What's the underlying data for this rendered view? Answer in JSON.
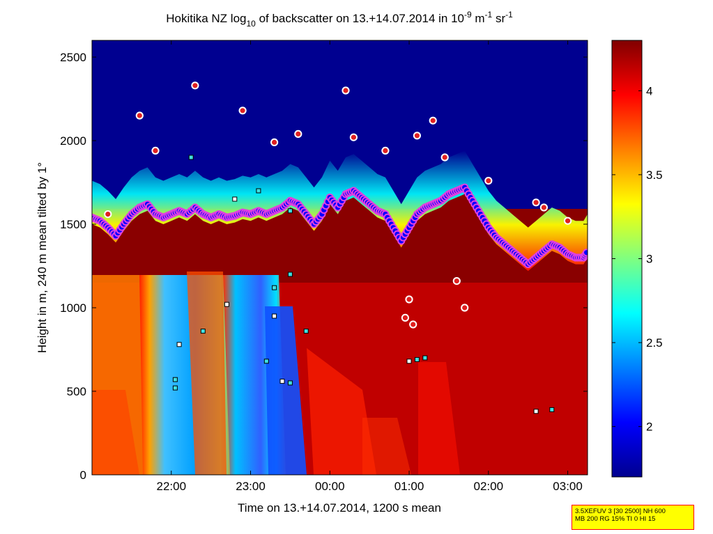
{
  "chart_data": {
    "type": "heatmap",
    "title": {
      "prefix": "Hokitika NZ log",
      "sub": "10",
      "middle": " of backscatter on 13.+14.07.2014 in 10",
      "sup1": "-9",
      "unit_m": " m",
      "sup2": "-1",
      "unit_sr": " sr",
      "sup3": "-1"
    },
    "xlabel": "Time on 13.+14.07.2014, 1200 s mean",
    "ylabel": "Height in m, 240 m mean tilted by 1°",
    "x_range_hours": [
      21.0,
      27.25
    ],
    "x_ticks": [
      {
        "value": 22,
        "label": "22:00"
      },
      {
        "value": 23,
        "label": "23:00"
      },
      {
        "value": 24,
        "label": "00:00"
      },
      {
        "value": 25,
        "label": "01:00"
      },
      {
        "value": 26,
        "label": "02:00"
      },
      {
        "value": 27,
        "label": "03:00"
      }
    ],
    "y_range": [
      0,
      2600
    ],
    "y_ticks": [
      0,
      500,
      1000,
      1500,
      2000,
      2500
    ],
    "colorbar": {
      "range": [
        1.7,
        4.3
      ],
      "ticks": [
        "2",
        "2.5",
        "3",
        "3.5",
        "4"
      ],
      "colormap": "jet"
    },
    "layer_top_height": [
      [
        21.0,
        1540
      ],
      [
        21.1,
        1520
      ],
      [
        21.2,
        1480
      ],
      [
        21.3,
        1430
      ],
      [
        21.4,
        1500
      ],
      [
        21.5,
        1560
      ],
      [
        21.6,
        1600
      ],
      [
        21.7,
        1620
      ],
      [
        21.8,
        1560
      ],
      [
        21.9,
        1540
      ],
      [
        22.0,
        1560
      ],
      [
        22.1,
        1580
      ],
      [
        22.2,
        1560
      ],
      [
        22.3,
        1600
      ],
      [
        22.4,
        1560
      ],
      [
        22.5,
        1540
      ],
      [
        22.6,
        1560
      ],
      [
        22.7,
        1540
      ],
      [
        22.8,
        1550
      ],
      [
        22.9,
        1570
      ],
      [
        23.0,
        1560
      ],
      [
        23.1,
        1580
      ],
      [
        23.2,
        1560
      ],
      [
        23.3,
        1580
      ],
      [
        23.4,
        1600
      ],
      [
        23.5,
        1640
      ],
      [
        23.6,
        1620
      ],
      [
        23.7,
        1560
      ],
      [
        23.8,
        1500
      ],
      [
        23.9,
        1560
      ],
      [
        24.0,
        1660
      ],
      [
        24.1,
        1600
      ],
      [
        24.2,
        1680
      ],
      [
        24.3,
        1700
      ],
      [
        24.4,
        1660
      ],
      [
        24.5,
        1620
      ],
      [
        24.6,
        1580
      ],
      [
        24.7,
        1560
      ],
      [
        24.8,
        1480
      ],
      [
        24.9,
        1400
      ],
      [
        25.0,
        1480
      ],
      [
        25.1,
        1560
      ],
      [
        25.2,
        1600
      ],
      [
        25.3,
        1620
      ],
      [
        25.4,
        1640
      ],
      [
        25.5,
        1680
      ],
      [
        25.6,
        1700
      ],
      [
        25.7,
        1720
      ],
      [
        25.8,
        1640
      ],
      [
        25.9,
        1560
      ],
      [
        26.0,
        1480
      ],
      [
        26.1,
        1420
      ],
      [
        26.2,
        1380
      ],
      [
        26.3,
        1340
      ],
      [
        26.4,
        1300
      ],
      [
        26.5,
        1260
      ],
      [
        26.6,
        1300
      ],
      [
        26.7,
        1340
      ],
      [
        26.8,
        1380
      ],
      [
        26.9,
        1360
      ],
      [
        27.0,
        1320
      ],
      [
        27.1,
        1300
      ],
      [
        27.2,
        1300
      ],
      [
        27.25,
        1340
      ]
    ],
    "cloud_base_points": [
      [
        22.1,
        780
      ],
      [
        22.05,
        570
      ],
      [
        22.05,
        520
      ],
      [
        22.7,
        1020
      ],
      [
        22.4,
        860
      ],
      [
        23.2,
        680
      ],
      [
        23.4,
        560
      ],
      [
        23.5,
        550
      ],
      [
        23.7,
        860
      ],
      [
        23.3,
        950
      ],
      [
        23.5,
        1200
      ],
      [
        23.3,
        1120
      ],
      [
        25.0,
        680
      ],
      [
        25.1,
        690
      ],
      [
        25.2,
        700
      ],
      [
        26.6,
        380
      ],
      [
        26.8,
        390
      ],
      [
        22.25,
        1900
      ],
      [
        22.8,
        1650
      ],
      [
        23.1,
        1700
      ],
      [
        23.5,
        1580
      ]
    ],
    "sky_points": [
      [
        21.2,
        1560
      ],
      [
        21.6,
        2150
      ],
      [
        21.8,
        1940
      ],
      [
        22.3,
        2330
      ],
      [
        22.9,
        2180
      ],
      [
        23.3,
        1990
      ],
      [
        23.6,
        2040
      ],
      [
        24.2,
        2300
      ],
      [
        24.3,
        2020
      ],
      [
        24.7,
        1940
      ],
      [
        25.1,
        2030
      ],
      [
        25.3,
        2120
      ],
      [
        25.45,
        1900
      ],
      [
        25.6,
        1160
      ],
      [
        25.7,
        1000
      ],
      [
        25.0,
        1050
      ],
      [
        24.95,
        940
      ],
      [
        25.05,
        900
      ],
      [
        26.0,
        1760
      ],
      [
        26.6,
        1630
      ],
      [
        26.7,
        1600
      ],
      [
        27.0,
        1520
      ]
    ]
  },
  "info_box": {
    "line1": "3.5XEFUV 3 [30 2500] NH 600",
    "line2": "MB 200 RG 15% TI 0 HI 15"
  }
}
